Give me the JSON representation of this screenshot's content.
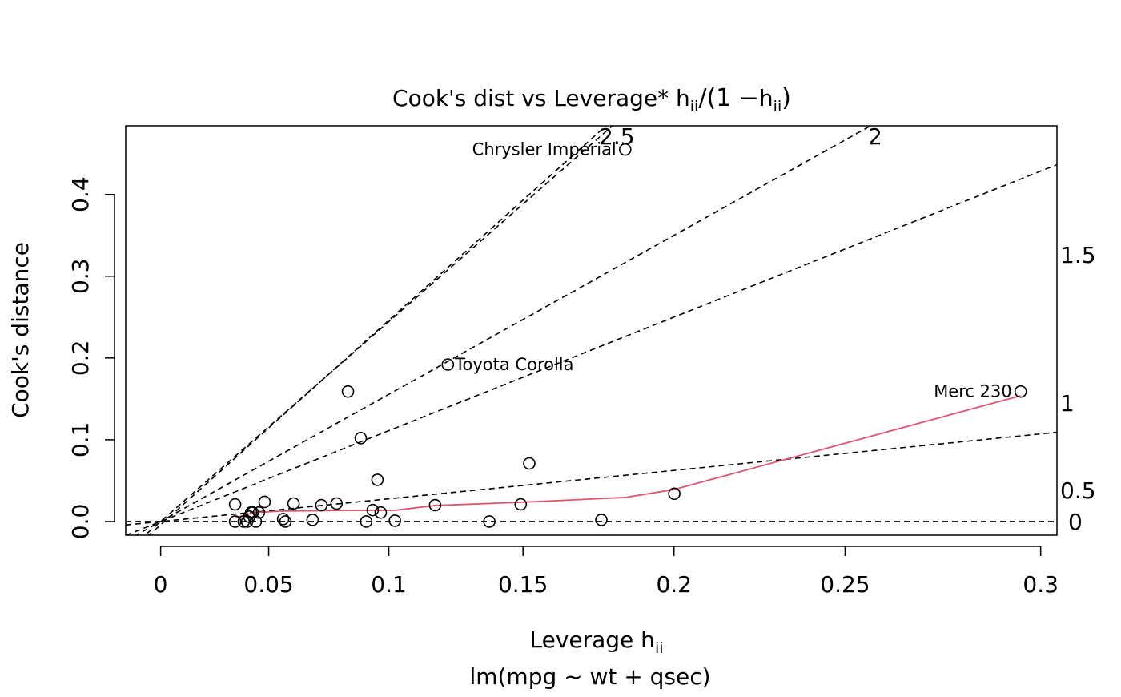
{
  "chart_data": {
    "type": "scatter",
    "title": {
      "main": "Cook's dist vs Leverage* ",
      "h": "h",
      "sub": "ii",
      "mid": "/(1 −",
      "h2": "h",
      "sub2": "ii",
      "end": ")"
    },
    "xlabel": {
      "main": "Leverage  h",
      "sub": "ii"
    },
    "ylabel": "Cook's distance",
    "subtitle": "lm(mpg ~ wt + qsec)",
    "x_scale": "h/(1-h)",
    "xlim": [
      -0.017,
      0.4365
    ],
    "ylim": [
      -0.0167,
      0.484
    ],
    "x_ticks": [
      0,
      0.05,
      0.1,
      0.15,
      0.2,
      0.25,
      0.3
    ],
    "x_tick_labels": [
      "0",
      "0.05",
      "0.1",
      "0.15",
      "0.2",
      "0.25",
      "0.3"
    ],
    "y_ticks": [
      0,
      0.1,
      0.2,
      0.3,
      0.4
    ],
    "y_tick_labels": [
      "0.0",
      "0.1",
      "0.2",
      "0.3",
      "0.4"
    ],
    "grid": false,
    "points": [
      {
        "h": 0.035,
        "d": 0.021
      },
      {
        "h": 0.035,
        "d": 0.0
      },
      {
        "h": 0.0389,
        "d": 0.0
      },
      {
        "h": 0.0404,
        "d": 0.0
      },
      {
        "h": 0.0414,
        "d": 0.006
      },
      {
        "h": 0.0422,
        "d": 0.011
      },
      {
        "h": 0.0429,
        "d": 0.011
      },
      {
        "h": 0.0443,
        "d": 0.0
      },
      {
        "h": 0.0457,
        "d": 0.011
      },
      {
        "h": 0.0482,
        "d": 0.024
      },
      {
        "h": 0.0563,
        "d": 0.003
      },
      {
        "h": 0.0573,
        "d": 0.0
      },
      {
        "h": 0.0608,
        "d": 0.022
      },
      {
        "h": 0.0689,
        "d": 0.002
      },
      {
        "h": 0.0726,
        "d": 0.02
      },
      {
        "h": 0.0789,
        "d": 0.022
      },
      {
        "h": 0.0836,
        "d": 0.159
      },
      {
        "h": 0.0888,
        "d": 0.102
      },
      {
        "h": 0.091,
        "d": 0.0
      },
      {
        "h": 0.0936,
        "d": 0.014
      },
      {
        "h": 0.0955,
        "d": 0.051
      },
      {
        "h": 0.0968,
        "d": 0.011
      },
      {
        "h": 0.1024,
        "d": 0.001
      },
      {
        "h": 0.1179,
        "d": 0.02
      },
      {
        "h": 0.1227,
        "d": 0.192,
        "label": "Toyota Corolla"
      },
      {
        "h": 0.138,
        "d": 0.0
      },
      {
        "h": 0.1492,
        "d": 0.021
      },
      {
        "h": 0.1522,
        "d": 0.071
      },
      {
        "h": 0.1767,
        "d": 0.002
      },
      {
        "h": 0.1845,
        "d": 0.455,
        "label": "Chrysler Imperial"
      },
      {
        "h": 0.2001,
        "d": 0.034
      },
      {
        "h": 0.2952,
        "d": 0.159,
        "label": "Merc 230"
      }
    ],
    "smooth": {
      "color": "#DF536B",
      "points": [
        [
          0.0353,
          0.0049
        ],
        [
          0.0436,
          0.011
        ],
        [
          0.0549,
          0.0127
        ],
        [
          0.0852,
          0.0137
        ],
        [
          0.1024,
          0.0137
        ],
        [
          0.1179,
          0.0196
        ],
        [
          0.1492,
          0.0235
        ],
        [
          0.1845,
          0.0294
        ],
        [
          0.2001,
          0.0392
        ],
        [
          0.2952,
          0.1539
        ]
      ]
    },
    "contours": [
      {
        "label": "0",
        "slope": 0
      },
      {
        "label": "0.5",
        "slope": 0.25
      },
      {
        "label": "1",
        "slope": 1.0
      },
      {
        "label": "1.5",
        "slope": 1.4
      },
      {
        "label": "2",
        "slope": 1.4
      },
      {
        "label": "2.5",
        "slope": 2.25
      }
    ],
    "contour_labels": [
      "0",
      "0.5",
      "1",
      "1.5",
      "2",
      "2.5"
    ]
  }
}
